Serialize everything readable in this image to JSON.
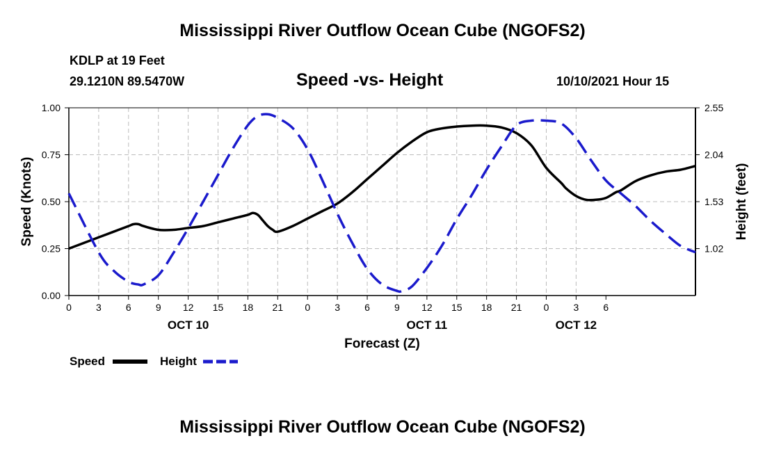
{
  "header": {
    "title": "Mississippi River Outflow Ocean Cube (NGOFS2)",
    "station": "KDLP at 19 Feet",
    "coords": "29.1210N  89.5470W",
    "subtitle": "Speed -vs- Height",
    "datetime": "10/10/2021 Hour 15"
  },
  "footer": {
    "title": "Mississippi River Outflow Ocean Cube (NGOFS2)"
  },
  "legend": {
    "speed_label": "Speed",
    "height_label": "Height"
  },
  "colors": {
    "speed": "#000000",
    "height": "#1a1acc",
    "grid": "#bbbbbb"
  },
  "chart_data": {
    "type": "line",
    "title": "Speed -vs- Height",
    "xlabel": "Forecast (Z)",
    "ylabel_left": "Speed (Knots)",
    "ylabel_right": "Height (feet)",
    "x_range_hours": [
      0,
      63
    ],
    "x_tick_labels": [
      "0",
      "3",
      "6",
      "9",
      "12",
      "15",
      "18",
      "21",
      "0",
      "3",
      "6",
      "9",
      "12",
      "15",
      "18",
      "21",
      "0",
      "3",
      "6"
    ],
    "date_labels": [
      {
        "label": "OCT 10",
        "hour": 12
      },
      {
        "label": "OCT 11",
        "hour": 36
      },
      {
        "label": "OCT 12",
        "hour": 51
      }
    ],
    "y_left_range": [
      0,
      1
    ],
    "y_left_ticks": [
      "0.00",
      "0.25",
      "0.50",
      "0.75",
      "1.00"
    ],
    "y_right_range": [
      0.51,
      2.55
    ],
    "y_right_ticks": [
      {
        "label": "1.02",
        "value": 1.02
      },
      {
        "label": "1.53",
        "value": 1.53
      },
      {
        "label": "2.04",
        "value": 2.04
      },
      {
        "label": "2.55",
        "value": 2.55
      }
    ],
    "grid": true,
    "legend_position": "bottom-left",
    "series": [
      {
        "name": "Speed",
        "axis": "left",
        "style": "solid",
        "x": [
          0,
          1.5,
          3,
          4.5,
          6,
          6.5,
          7,
          7.5,
          9,
          10.5,
          12,
          13.5,
          15,
          16.5,
          18,
          18.5,
          19,
          19.5,
          20,
          20.5,
          21,
          22.5,
          24,
          25.5,
          27,
          28.5,
          30,
          31.5,
          33,
          34.5,
          36,
          37.5,
          39,
          40.5,
          42,
          43.5,
          45,
          46.5,
          48,
          49.5,
          50,
          51,
          52,
          53,
          54,
          55,
          55.5,
          57,
          58.5,
          60,
          61.5,
          63
        ],
        "values": [
          0.25,
          0.28,
          0.31,
          0.34,
          0.37,
          0.38,
          0.38,
          0.37,
          0.35,
          0.35,
          0.36,
          0.37,
          0.39,
          0.41,
          0.43,
          0.44,
          0.43,
          0.4,
          0.37,
          0.35,
          0.34,
          0.37,
          0.41,
          0.45,
          0.49,
          0.55,
          0.62,
          0.69,
          0.76,
          0.82,
          0.87,
          0.89,
          0.9,
          0.905,
          0.905,
          0.895,
          0.865,
          0.8,
          0.68,
          0.6,
          0.57,
          0.53,
          0.51,
          0.51,
          0.52,
          0.55,
          0.56,
          0.61,
          0.64,
          0.66,
          0.67,
          0.69
        ]
      },
      {
        "name": "Height",
        "axis": "right",
        "style": "dashed",
        "x": [
          0,
          3,
          4.5,
          6,
          7,
          7.5,
          9,
          10.5,
          12,
          13.5,
          15,
          16.5,
          18,
          19,
          20,
          21,
          22.5,
          24,
          25.5,
          27,
          28.5,
          30,
          31.5,
          33,
          33.5,
          34.5,
          36,
          37.5,
          39,
          40.5,
          42,
          43.5,
          45,
          46.5,
          48,
          49.5,
          51,
          52.5,
          54,
          55.5,
          57,
          58.5,
          60,
          61.5,
          63
        ],
        "values": [
          1.62,
          0.98,
          0.78,
          0.66,
          0.63,
          0.63,
          0.73,
          0.97,
          1.24,
          1.53,
          1.82,
          2.11,
          2.36,
          2.46,
          2.48,
          2.44,
          2.33,
          2.1,
          1.76,
          1.4,
          1.08,
          0.8,
          0.63,
          0.56,
          0.56,
          0.61,
          0.81,
          1.05,
          1.34,
          1.6,
          1.88,
          2.13,
          2.36,
          2.41,
          2.41,
          2.38,
          2.22,
          1.98,
          1.76,
          1.62,
          1.48,
          1.32,
          1.18,
          1.05,
          0.98
        ]
      }
    ]
  }
}
